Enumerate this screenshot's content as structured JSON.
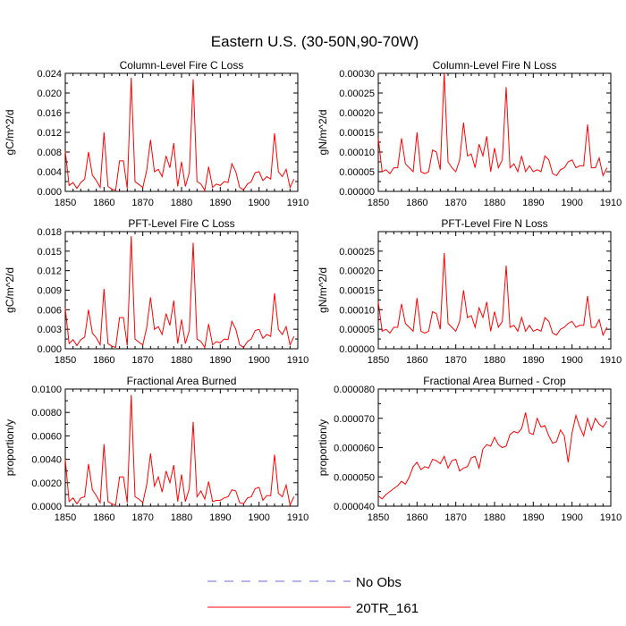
{
  "figure": {
    "title": "Eastern U.S. (30-50N,90-70W)"
  },
  "legend": {
    "items": [
      {
        "label": "No Obs",
        "color": "#6b6bd6",
        "dash": true
      },
      {
        "label": "20TR_161",
        "color": "#ff0000",
        "dash": false
      }
    ]
  },
  "colors": {
    "series": "#ff0000"
  },
  "chart_data": [
    {
      "type": "line",
      "title": "Column-Level Fire C Loss",
      "xlabel": "",
      "ylabel": "gC/m^2/d",
      "xlim": [
        1850,
        1910
      ],
      "ylim": [
        0,
        0.024
      ],
      "xticks": [
        1850,
        1860,
        1870,
        1880,
        1890,
        1900,
        1910
      ],
      "yticks": [
        "0.000",
        "0.004",
        "0.008",
        "0.012",
        "0.016",
        "0.020",
        "0.024"
      ],
      "ytick_values": [
        0,
        0.004,
        0.008,
        0.012,
        0.016,
        0.02,
        0.024
      ],
      "series": [
        {
          "name": "20TR_161",
          "x": [
            1850,
            1851,
            1852,
            1853,
            1854,
            1855,
            1856,
            1857,
            1858,
            1859,
            1860,
            1861,
            1862,
            1863,
            1864,
            1865,
            1866,
            1867,
            1868,
            1869,
            1870,
            1871,
            1872,
            1873,
            1874,
            1875,
            1876,
            1877,
            1878,
            1879,
            1880,
            1881,
            1882,
            1883,
            1884,
            1885,
            1886,
            1887,
            1888,
            1889,
            1890,
            1891,
            1892,
            1893,
            1894,
            1895,
            1896,
            1897,
            1898,
            1899,
            1900,
            1901,
            1902,
            1903,
            1904,
            1905,
            1906,
            1907,
            1908,
            1909
          ],
          "y": [
            0.0082,
            0.0012,
            0.0018,
            0.0006,
            0.0018,
            0.0025,
            0.008,
            0.0033,
            0.0022,
            0.0008,
            0.012,
            0.001,
            0.0005,
            0.0002,
            0.0062,
            0.0062,
            0.0006,
            0.0231,
            0.002,
            0.0014,
            0.0008,
            0.0042,
            0.0105,
            0.004,
            0.0045,
            0.003,
            0.0072,
            0.0048,
            0.0098,
            0.001,
            0.006,
            0.001,
            0.0038,
            0.0228,
            0.002,
            0.0015,
            0.0002,
            0.005,
            0.0008,
            0.0015,
            0.0012,
            0.002,
            0.0018,
            0.0056,
            0.004,
            0.0008,
            0.0003,
            0.0015,
            0.002,
            0.0038,
            0.004,
            0.0022,
            0.003,
            0.0025,
            0.0118,
            0.004,
            0.003,
            0.0045,
            0.0008,
            0.0025
          ]
        }
      ]
    },
    {
      "type": "line",
      "title": "Column-Level Fire N Loss",
      "xlabel": "",
      "ylabel": "gN/m^2/d",
      "xlim": [
        1850,
        1910
      ],
      "ylim": [
        0,
        0.0003
      ],
      "xticks": [
        1850,
        1860,
        1870,
        1880,
        1890,
        1900,
        1910
      ],
      "yticks": [
        "0.00000",
        "0.00005",
        "0.00010",
        "0.00015",
        "0.00020",
        "0.00025",
        "0.00030"
      ],
      "ytick_values": [
        0,
        5e-05,
        0.0001,
        0.00015,
        0.0002,
        0.00025,
        0.0003
      ],
      "series": [
        {
          "name": "20TR_161",
          "x": [
            1850,
            1851,
            1852,
            1853,
            1854,
            1855,
            1856,
            1857,
            1858,
            1859,
            1860,
            1861,
            1862,
            1863,
            1864,
            1865,
            1866,
            1867,
            1868,
            1869,
            1870,
            1871,
            1872,
            1873,
            1874,
            1875,
            1876,
            1877,
            1878,
            1879,
            1880,
            1881,
            1882,
            1883,
            1884,
            1885,
            1886,
            1887,
            1888,
            1889,
            1890,
            1891,
            1892,
            1893,
            1894,
            1895,
            1896,
            1897,
            1898,
            1899,
            1900,
            1901,
            1902,
            1903,
            1904,
            1905,
            1906,
            1907,
            1908,
            1909
          ],
          "y": [
            0.000135,
            5e-05,
            5.5e-05,
            4.5e-05,
            6e-05,
            6e-05,
            0.000135,
            7e-05,
            6e-05,
            5e-05,
            0.00015,
            5e-05,
            4.5e-05,
            5e-05,
            0.000105,
            0.0001,
            5.5e-05,
            0.0003,
            7.5e-05,
            6e-05,
            5e-05,
            8e-05,
            0.000175,
            9e-05,
            9.5e-05,
            6e-05,
            0.00012,
            9e-05,
            0.00014,
            5e-05,
            0.00011,
            6e-05,
            8e-05,
            0.000265,
            6e-05,
            7e-05,
            5e-05,
            9e-05,
            5e-05,
            6.5e-05,
            5e-05,
            5.5e-05,
            5e-05,
            9e-05,
            8e-05,
            4.5e-05,
            4e-05,
            5.5e-05,
            6e-05,
            7.5e-05,
            8e-05,
            6e-05,
            6.5e-05,
            6.5e-05,
            0.00017,
            6e-05,
            6e-05,
            8.5e-05,
            4e-05,
            6e-05
          ]
        }
      ]
    },
    {
      "type": "line",
      "title": "PFT-Level Fire C Loss",
      "xlabel": "",
      "ylabel": "gC/m^2/d",
      "xlim": [
        1850,
        1910
      ],
      "ylim": [
        0,
        0.018
      ],
      "xticks": [
        1850,
        1860,
        1870,
        1880,
        1890,
        1900,
        1910
      ],
      "yticks": [
        "0.000",
        "0.003",
        "0.006",
        "0.009",
        "0.012",
        "0.015",
        "0.018"
      ],
      "ytick_values": [
        0,
        0.003,
        0.006,
        0.009,
        0.012,
        0.015,
        0.018
      ],
      "series": [
        {
          "name": "20TR_161",
          "x": [
            1850,
            1851,
            1852,
            1853,
            1854,
            1855,
            1856,
            1857,
            1858,
            1859,
            1860,
            1861,
            1862,
            1863,
            1864,
            1865,
            1866,
            1867,
            1868,
            1869,
            1870,
            1871,
            1872,
            1873,
            1874,
            1875,
            1876,
            1877,
            1878,
            1879,
            1880,
            1881,
            1882,
            1883,
            1884,
            1885,
            1886,
            1887,
            1888,
            1889,
            1890,
            1891,
            1892,
            1893,
            1894,
            1895,
            1896,
            1897,
            1898,
            1899,
            1900,
            1901,
            1902,
            1903,
            1904,
            1905,
            1906,
            1907,
            1908,
            1909
          ],
          "y": [
            0.0062,
            0.0008,
            0.0014,
            0.0005,
            0.0014,
            0.0018,
            0.006,
            0.0024,
            0.0017,
            0.0006,
            0.0092,
            0.0008,
            0.0004,
            0.0002,
            0.0048,
            0.0048,
            0.0005,
            0.0173,
            0.0015,
            0.001,
            0.0006,
            0.0032,
            0.0079,
            0.003,
            0.0034,
            0.0022,
            0.0054,
            0.0036,
            0.0074,
            0.0008,
            0.0045,
            0.0008,
            0.0028,
            0.0163,
            0.0015,
            0.0011,
            0.0002,
            0.0038,
            0.0006,
            0.0011,
            0.0009,
            0.0015,
            0.0014,
            0.0042,
            0.003,
            0.0006,
            0.0002,
            0.0011,
            0.0015,
            0.0028,
            0.003,
            0.0016,
            0.0022,
            0.0019,
            0.0085,
            0.003,
            0.0022,
            0.0034,
            0.0006,
            0.0019
          ]
        }
      ]
    },
    {
      "type": "line",
      "title": "PFT-Level Fire N Loss",
      "xlabel": "",
      "ylabel": "gN/m^2/d",
      "xlim": [
        1850,
        1910
      ],
      "ylim": [
        0,
        0.0003
      ],
      "xticks": [
        1850,
        1860,
        1870,
        1880,
        1890,
        1900,
        1910
      ],
      "yticks": [
        "0.00000",
        "0.00005",
        "0.00010",
        "0.00015",
        "0.00020",
        "0.00025"
      ],
      "ytick_values": [
        0,
        5e-05,
        0.0001,
        0.00015,
        0.0002,
        0.00025
      ],
      "series": [
        {
          "name": "20TR_161",
          "x": [
            1850,
            1851,
            1852,
            1853,
            1854,
            1855,
            1856,
            1857,
            1858,
            1859,
            1860,
            1861,
            1862,
            1863,
            1864,
            1865,
            1866,
            1867,
            1868,
            1869,
            1870,
            1871,
            1872,
            1873,
            1874,
            1875,
            1876,
            1877,
            1878,
            1879,
            1880,
            1881,
            1882,
            1883,
            1884,
            1885,
            1886,
            1887,
            1888,
            1889,
            1890,
            1891,
            1892,
            1893,
            1894,
            1895,
            1896,
            1897,
            1898,
            1899,
            1900,
            1901,
            1902,
            1903,
            1904,
            1905,
            1906,
            1907,
            1908,
            1909
          ],
          "y": [
            0.00012,
            4.5e-05,
            5e-05,
            4e-05,
            5.5e-05,
            5.5e-05,
            0.000115,
            6.5e-05,
            5.5e-05,
            4.5e-05,
            0.00013,
            4.5e-05,
            4e-05,
            4.5e-05,
            9.5e-05,
            9e-05,
            5e-05,
            0.000245,
            6.5e-05,
            5.5e-05,
            4.5e-05,
            7e-05,
            0.00015,
            8e-05,
            8.5e-05,
            5.5e-05,
            0.000105,
            8e-05,
            0.00012,
            4.5e-05,
            9.5e-05,
            5.5e-05,
            7e-05,
            0.000213,
            5.5e-05,
            6e-05,
            4.5e-05,
            8e-05,
            4.5e-05,
            6e-05,
            4.5e-05,
            5e-05,
            4.5e-05,
            8e-05,
            7e-05,
            4e-05,
            3.5e-05,
            5e-05,
            5.5e-05,
            6.5e-05,
            7e-05,
            5.5e-05,
            6e-05,
            6e-05,
            0.000135,
            5.5e-05,
            5.5e-05,
            7.5e-05,
            3.5e-05,
            5.5e-05
          ]
        }
      ]
    },
    {
      "type": "line",
      "title": "Fractional Area Burned",
      "xlabel": "",
      "ylabel": "proportion/y",
      "xlim": [
        1850,
        1910
      ],
      "ylim": [
        0,
        0.01
      ],
      "xticks": [
        1850,
        1860,
        1870,
        1880,
        1890,
        1900,
        1910
      ],
      "yticks": [
        "0.0000",
        "0.0020",
        "0.0040",
        "0.0060",
        "0.0080",
        "0.0100"
      ],
      "ytick_values": [
        0,
        0.002,
        0.004,
        0.006,
        0.008,
        0.01
      ],
      "series": [
        {
          "name": "20TR_161",
          "x": [
            1850,
            1851,
            1852,
            1853,
            1854,
            1855,
            1856,
            1857,
            1858,
            1859,
            1860,
            1861,
            1862,
            1863,
            1864,
            1865,
            1866,
            1867,
            1868,
            1869,
            1870,
            1871,
            1872,
            1873,
            1874,
            1875,
            1876,
            1877,
            1878,
            1879,
            1880,
            1881,
            1882,
            1883,
            1884,
            1885,
            1886,
            1887,
            1888,
            1889,
            1890,
            1891,
            1892,
            1893,
            1894,
            1895,
            1896,
            1897,
            1898,
            1899,
            1900,
            1901,
            1902,
            1903,
            1904,
            1905,
            1906,
            1907,
            1908,
            1909
          ],
          "y": [
            0.004,
            0.0004,
            0.0007,
            0.0002,
            0.0007,
            0.0008,
            0.0036,
            0.0014,
            0.0009,
            0.0003,
            0.0053,
            0.0004,
            0.0002,
            0.0001,
            0.0025,
            0.0025,
            0.0003,
            0.0095,
            0.0008,
            0.0006,
            0.0003,
            0.0018,
            0.0045,
            0.0017,
            0.0025,
            0.0012,
            0.003,
            0.002,
            0.0035,
            0.0004,
            0.0027,
            0.0004,
            0.0015,
            0.0072,
            0.0008,
            0.0013,
            0.0006,
            0.0021,
            0.0004,
            0.0005,
            0.0005,
            0.0007,
            0.0008,
            0.0014,
            0.0013,
            0.0003,
            0.0002,
            0.0007,
            0.0008,
            0.0015,
            0.0016,
            0.0005,
            0.0009,
            0.0009,
            0.0044,
            0.0011,
            0.0008,
            0.0018,
            0.0001,
            0.0008
          ]
        }
      ]
    },
    {
      "type": "line",
      "title": "Fractional Area Burned - Crop",
      "xlabel": "",
      "ylabel": "proportion/y",
      "xlim": [
        1850,
        1910
      ],
      "ylim": [
        4e-05,
        8e-05
      ],
      "xticks": [
        1850,
        1860,
        1870,
        1880,
        1890,
        1900,
        1910
      ],
      "yticks": [
        "0.000040",
        "0.000050",
        "0.000060",
        "0.000070",
        "0.000080"
      ],
      "ytick_values": [
        4e-05,
        5e-05,
        6e-05,
        7e-05,
        8e-05
      ],
      "series": [
        {
          "name": "20TR_161",
          "x": [
            1850,
            1851,
            1852,
            1853,
            1854,
            1855,
            1856,
            1857,
            1858,
            1859,
            1860,
            1861,
            1862,
            1863,
            1864,
            1865,
            1866,
            1867,
            1868,
            1869,
            1870,
            1871,
            1872,
            1873,
            1874,
            1875,
            1876,
            1877,
            1878,
            1879,
            1880,
            1881,
            1882,
            1883,
            1884,
            1885,
            1886,
            1887,
            1888,
            1889,
            1890,
            1891,
            1892,
            1893,
            1894,
            1895,
            1896,
            1897,
            1898,
            1899,
            1900,
            1901,
            1902,
            1903,
            1904,
            1905,
            1906,
            1907,
            1908,
            1909
          ],
          "y": [
            4.35e-05,
            4.25e-05,
            4.4e-05,
            4.5e-05,
            4.6e-05,
            4.7e-05,
            4.85e-05,
            4.75e-05,
            5e-05,
            5.35e-05,
            5.5e-05,
            5.25e-05,
            5.35e-05,
            5.3e-05,
            5.6e-05,
            5.55e-05,
            5.45e-05,
            5.7e-05,
            5.3e-05,
            5.55e-05,
            5.6e-05,
            5.2e-05,
            5.3e-05,
            5.35e-05,
            5.65e-05,
            5.7e-05,
            5.3e-05,
            5.95e-05,
            6.1e-05,
            6.05e-05,
            6.35e-05,
            6.1e-05,
            6e-05,
            6.05e-05,
            6.45e-05,
            6.55e-05,
            6.5e-05,
            6.65e-05,
            7.2e-05,
            6.5e-05,
            6.45e-05,
            7e-05,
            6.7e-05,
            6.75e-05,
            6.4e-05,
            6.15e-05,
            6.2e-05,
            6.6e-05,
            6.4e-05,
            5.5e-05,
            6.5e-05,
            7.1e-05,
            6.7e-05,
            6.4e-05,
            7e-05,
            6.6e-05,
            7e-05,
            6.8e-05,
            6.7e-05,
            6.9e-05
          ]
        }
      ]
    }
  ]
}
